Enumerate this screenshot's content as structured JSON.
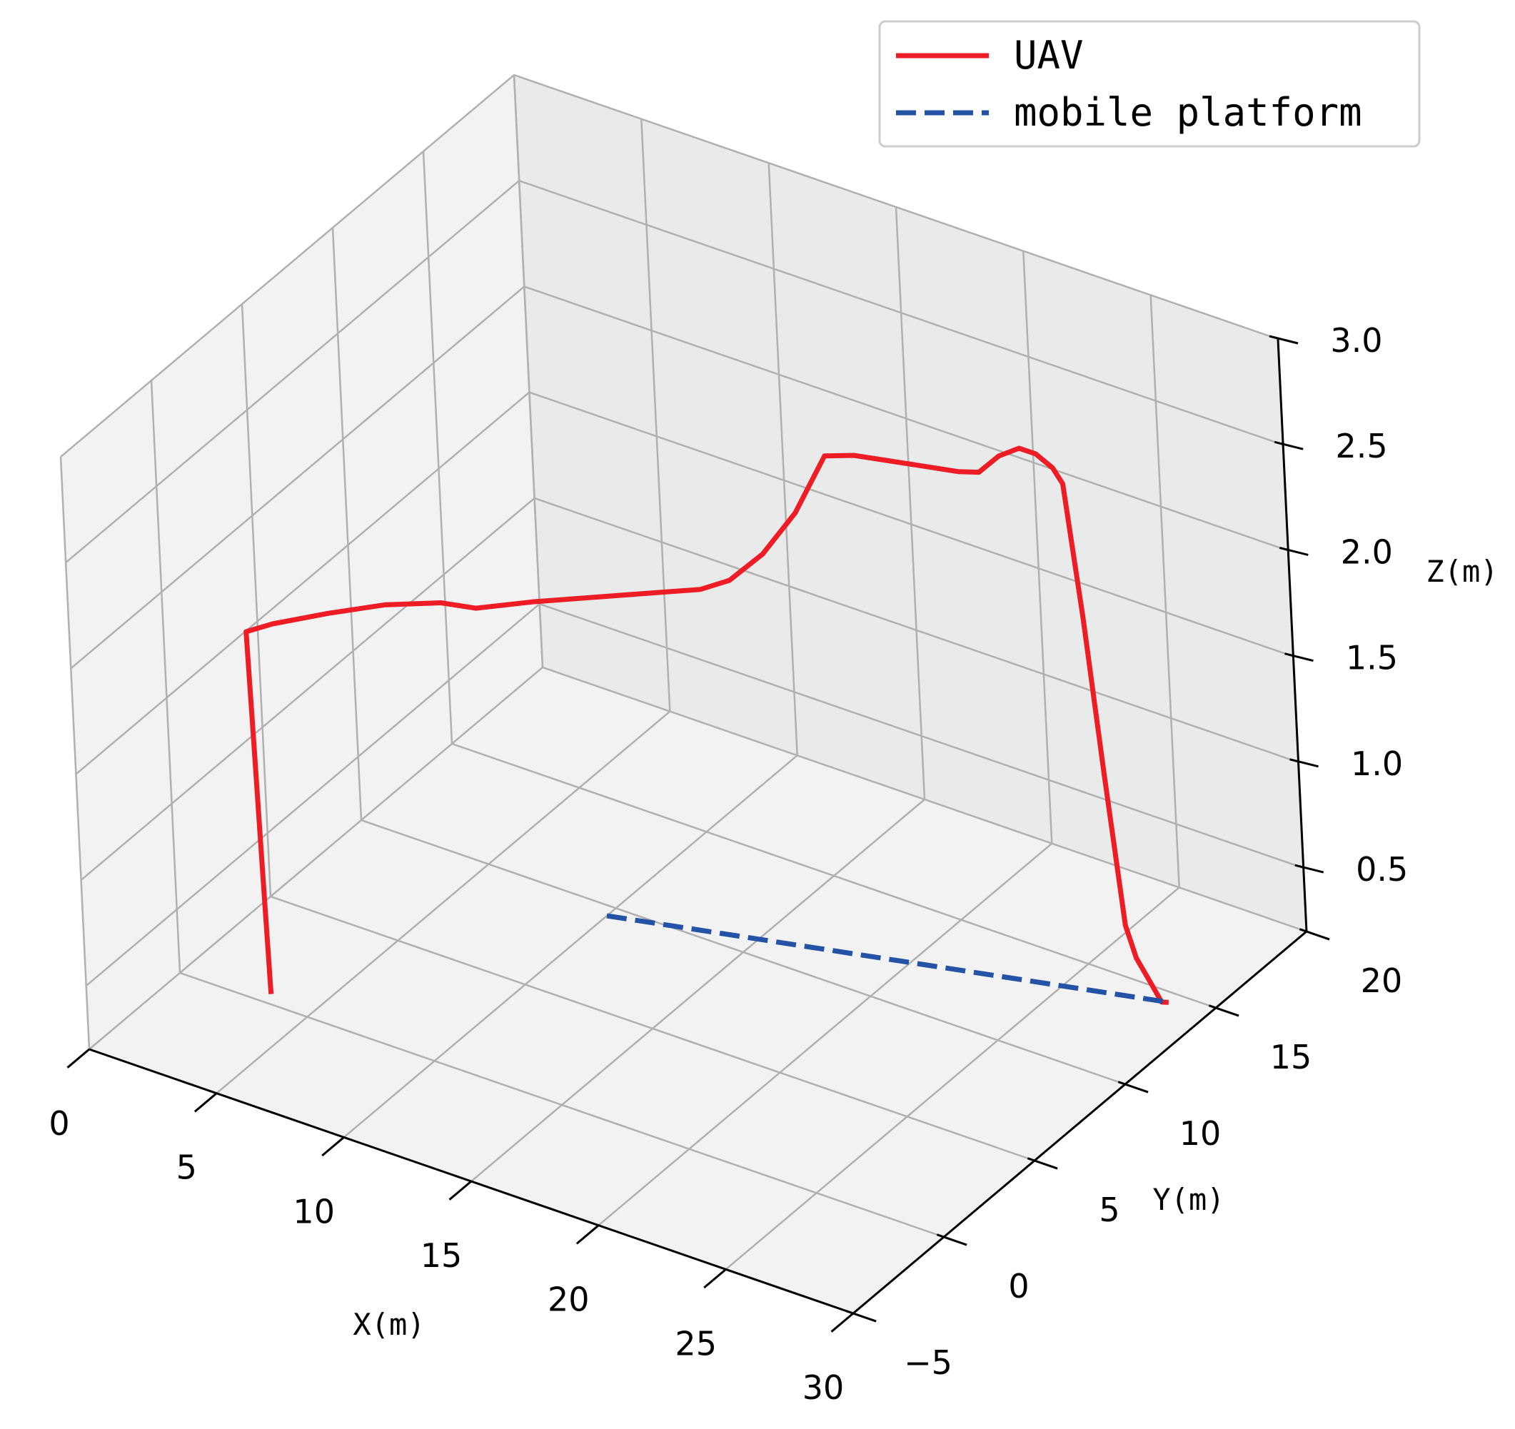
{
  "chart_data": {
    "type": "line",
    "projection": "3d",
    "xlabel": "X(m)",
    "ylabel": "Y(m)",
    "zlabel": "Z(m)",
    "xlim": [
      0,
      30
    ],
    "ylim": [
      -5,
      20
    ],
    "zlim": [
      0.2,
      3.0
    ],
    "x_ticks": [
      0,
      5,
      10,
      15,
      20,
      25,
      30
    ],
    "y_ticks": [
      -5,
      0,
      5,
      10,
      15,
      20
    ],
    "z_ticks": [
      0.5,
      1.0,
      1.5,
      2.0,
      2.5,
      3.0
    ],
    "x_tick_labels": [
      "0",
      "5",
      "10",
      "15",
      "20",
      "25",
      "30"
    ],
    "y_tick_labels": [
      "−5",
      "0",
      "5",
      "10",
      "15",
      "20"
    ],
    "z_tick_labels": [
      "0.5",
      "1.0",
      "1.5",
      "2.0",
      "2.5",
      "3.0"
    ],
    "grid": true,
    "legend": "top-right",
    "series": [
      {
        "name": "UAV",
        "color": "#ee1c25",
        "style": "solid",
        "points": [
          [
            3.6,
            0.0,
            0.25
          ],
          [
            3.5,
            0.0,
            0.8
          ],
          [
            3.4,
            0.0,
            1.4
          ],
          [
            3.3,
            0.0,
            1.95
          ],
          [
            4.0,
            0.5,
            1.98
          ],
          [
            5.5,
            1.5,
            2.02
          ],
          [
            7.0,
            2.5,
            2.05
          ],
          [
            8.5,
            3.5,
            2.05
          ],
          [
            9.5,
            4.0,
            2.03
          ],
          [
            11.0,
            5.0,
            2.05
          ],
          [
            12.5,
            6.0,
            2.06
          ],
          [
            14.0,
            7.0,
            2.07
          ],
          [
            15.5,
            8.0,
            2.08
          ],
          [
            16.3,
            8.5,
            2.12
          ],
          [
            17.3,
            9.0,
            2.25
          ],
          [
            18.3,
            9.5,
            2.45
          ],
          [
            19.2,
            10.0,
            2.72
          ],
          [
            20.0,
            10.5,
            2.72
          ],
          [
            21.0,
            11.0,
            2.7
          ],
          [
            22.0,
            11.5,
            2.68
          ],
          [
            23.0,
            12.0,
            2.66
          ],
          [
            23.6,
            12.3,
            2.66
          ],
          [
            24.2,
            12.6,
            2.74
          ],
          [
            24.8,
            12.9,
            2.78
          ],
          [
            25.3,
            13.1,
            2.76
          ],
          [
            25.8,
            13.3,
            2.7
          ],
          [
            26.1,
            13.4,
            2.63
          ],
          [
            26.5,
            13.6,
            2.0
          ],
          [
            26.9,
            13.8,
            1.25
          ],
          [
            27.3,
            14.0,
            0.55
          ],
          [
            27.6,
            14.1,
            0.4
          ],
          [
            28.0,
            14.3,
            0.28
          ],
          [
            28.3,
            14.4,
            0.2
          ],
          [
            28.5,
            14.5,
            0.2
          ]
        ]
      },
      {
        "name": "mobile platform",
        "color": "#2352a6",
        "style": "dashed",
        "points": [
          [
            10.0,
            9.5,
            0.2
          ],
          [
            28.5,
            14.5,
            0.2
          ]
        ]
      }
    ]
  }
}
